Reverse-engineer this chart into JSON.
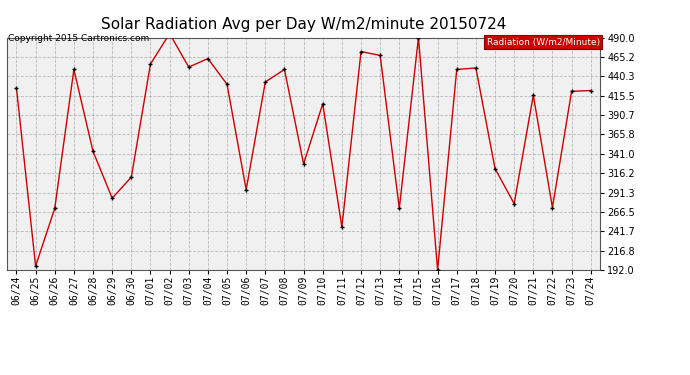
{
  "title": "Solar Radiation Avg per Day W/m2/minute 20150724",
  "copyright": "Copyright 2015 Cartronics.com",
  "legend_label": "Radiation (W/m2/Minute)",
  "dates": [
    "06/24",
    "06/25",
    "06/26",
    "06/27",
    "06/28",
    "06/29",
    "06/30",
    "07/01",
    "07/02",
    "07/03",
    "07/04",
    "07/05",
    "07/06",
    "07/07",
    "07/08",
    "07/09",
    "07/10",
    "07/11",
    "07/12",
    "07/13",
    "07/14",
    "07/15",
    "07/16",
    "07/17",
    "07/18",
    "07/19",
    "07/20",
    "07/21",
    "07/22",
    "07/23",
    "07/24"
  ],
  "values": [
    425.0,
    197.0,
    271.0,
    449.0,
    344.0,
    284.0,
    311.0,
    456.0,
    495.0,
    452.0,
    463.0,
    430.0,
    295.0,
    433.0,
    449.0,
    328.0,
    405.0,
    247.0,
    472.0,
    467.0,
    271.0,
    490.0,
    192.0,
    449.0,
    451.0,
    322.0,
    277.0,
    416.0,
    272.0,
    421.0,
    422.0
  ],
  "ylim": [
    192.0,
    490.0
  ],
  "yticks": [
    192.0,
    216.8,
    241.7,
    266.5,
    291.3,
    316.2,
    341.0,
    365.8,
    390.7,
    415.5,
    440.3,
    465.2,
    490.0
  ],
  "line_color": "#cc0000",
  "marker_color": "#000000",
  "bg_color": "#ffffff",
  "plot_bg_color": "#f0f0f0",
  "grid_color": "#aaaaaa",
  "title_fontsize": 11,
  "copyright_fontsize": 6.5,
  "tick_fontsize": 7,
  "legend_bg_color": "#cc0000",
  "legend_text_color": "#ffffff"
}
